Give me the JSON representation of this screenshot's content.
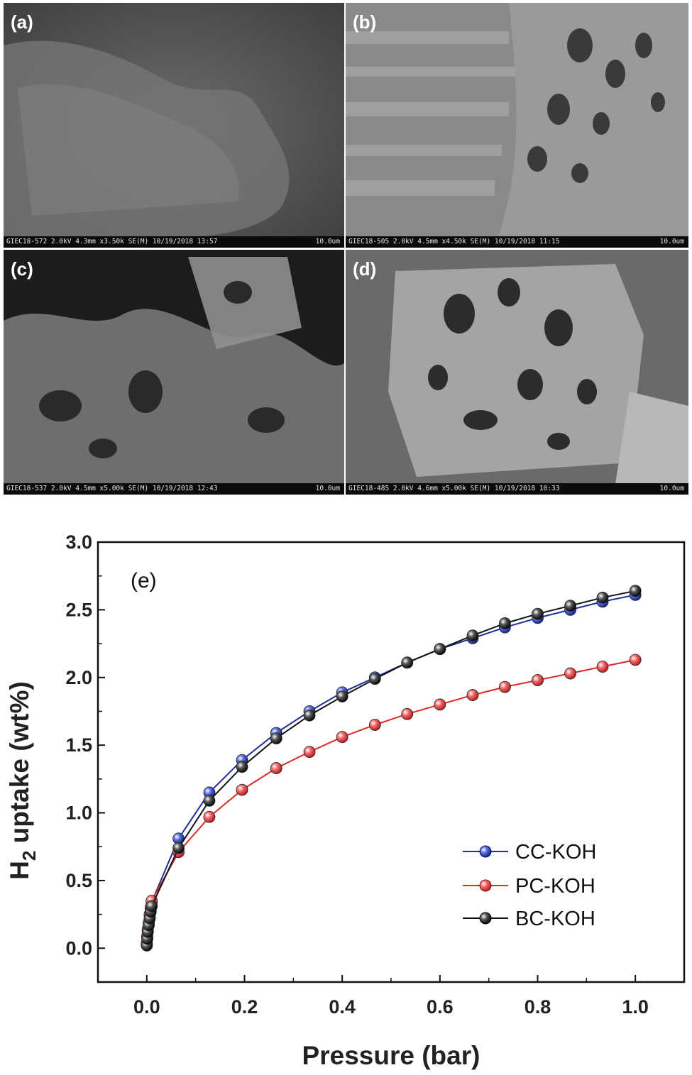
{
  "sem_panels": [
    {
      "label": "(a)",
      "meta": "GIEC18-572 2.0kV 4.3mm x3.50k SE(M) 10/19/2018 13:57",
      "scale": "10.0um"
    },
    {
      "label": "(b)",
      "meta": "GIEC18-505 2.0kV 4.5mm x4.50k SE(M) 10/19/2018 11:15",
      "scale": "10.0um"
    },
    {
      "label": "(c)",
      "meta": "GIEC18-537 2.0kV 4.5mm x5.00k SE(M) 10/19/2018 12:43",
      "scale": "10.0um"
    },
    {
      "label": "(d)",
      "meta": "GIEC18-485 2.0kV 4.6mm x5.00k SE(M) 10/19/2018 10:33",
      "scale": "10.0um"
    }
  ],
  "chart_data": {
    "type": "line",
    "panel_label": "(e)",
    "xlabel": "Pressure (bar)",
    "ylabel_main": "H",
    "ylabel_sub": "2",
    "ylabel_rest": " uptake (wt%)",
    "xlim": [
      -0.1,
      1.1
    ],
    "ylim": [
      -0.25,
      3.0
    ],
    "xticks": [
      "0.0",
      "0.2",
      "0.4",
      "0.6",
      "0.8",
      "1.0"
    ],
    "xtick_values": [
      0.0,
      0.2,
      0.4,
      0.6,
      0.8,
      1.0
    ],
    "yticks": [
      "0.0",
      "0.5",
      "1.0",
      "1.5",
      "2.0",
      "2.5",
      "3.0"
    ],
    "ytick_values": [
      0.0,
      0.5,
      1.0,
      1.5,
      2.0,
      2.5,
      3.0
    ],
    "legend_position": "bottom-right",
    "series": [
      {
        "name": "CC-KOH",
        "color": "#1f2f9a",
        "x": [
          0.0,
          0.001,
          0.002,
          0.004,
          0.006,
          0.008,
          0.01,
          0.065,
          0.128,
          0.195,
          0.265,
          0.333,
          0.4,
          0.467,
          0.533,
          0.6,
          0.667,
          0.733,
          0.8,
          0.867,
          0.933,
          1.0
        ],
        "y": [
          0.03,
          0.08,
          0.13,
          0.18,
          0.24,
          0.29,
          0.34,
          0.81,
          1.15,
          1.39,
          1.59,
          1.75,
          1.89,
          2.0,
          2.11,
          2.21,
          2.29,
          2.37,
          2.44,
          2.5,
          2.56,
          2.61
        ]
      },
      {
        "name": "PC-KOH",
        "color": "#d92b2b",
        "x": [
          0.0,
          0.001,
          0.002,
          0.004,
          0.006,
          0.008,
          0.01,
          0.065,
          0.128,
          0.195,
          0.265,
          0.333,
          0.4,
          0.467,
          0.533,
          0.6,
          0.667,
          0.733,
          0.8,
          0.867,
          0.933,
          1.0
        ],
        "y": [
          0.04,
          0.09,
          0.14,
          0.19,
          0.25,
          0.3,
          0.35,
          0.71,
          0.97,
          1.17,
          1.33,
          1.45,
          1.56,
          1.65,
          1.73,
          1.8,
          1.87,
          1.93,
          1.98,
          2.03,
          2.08,
          2.13
        ]
      },
      {
        "name": "BC-KOH",
        "color": "#111111",
        "x": [
          0.0,
          0.001,
          0.002,
          0.004,
          0.006,
          0.008,
          0.01,
          0.065,
          0.128,
          0.195,
          0.265,
          0.333,
          0.4,
          0.467,
          0.533,
          0.6,
          0.667,
          0.733,
          0.8,
          0.867,
          0.933,
          1.0
        ],
        "y": [
          0.02,
          0.07,
          0.12,
          0.17,
          0.22,
          0.27,
          0.31,
          0.74,
          1.09,
          1.34,
          1.55,
          1.72,
          1.86,
          1.99,
          2.11,
          2.21,
          2.31,
          2.4,
          2.47,
          2.53,
          2.59,
          2.64
        ]
      }
    ]
  }
}
